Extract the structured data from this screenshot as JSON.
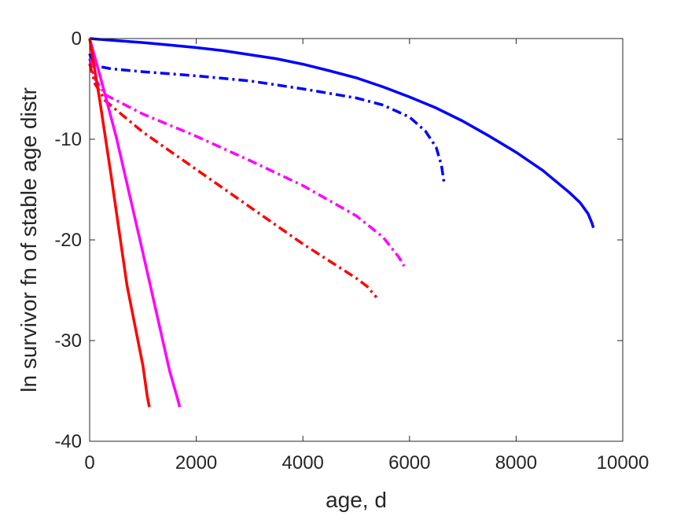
{
  "chart_data": {
    "type": "line",
    "xlabel": "age, d",
    "ylabel": "ln survivor fn of stable age distr",
    "xlim": [
      0,
      10000
    ],
    "ylim": [
      -40,
      0
    ],
    "xticks": [
      0,
      2000,
      4000,
      6000,
      8000,
      10000
    ],
    "yticks": [
      0,
      -10,
      -20,
      -30,
      -40
    ],
    "xtick_labels": [
      "0",
      "2000",
      "4000",
      "6000",
      "8000",
      "10000"
    ],
    "ytick_labels": [
      "0",
      "-10",
      "-20",
      "-30",
      "-40"
    ],
    "grid": false,
    "legend": "none",
    "series": [
      {
        "color": "#0000ff",
        "style": "solid",
        "x": [
          0,
          500,
          1000,
          1500,
          2000,
          2500,
          3000,
          3500,
          4000,
          4500,
          5000,
          5500,
          6000,
          6500,
          7000,
          7500,
          8000,
          8500,
          9000,
          9200,
          9350,
          9420,
          9450
        ],
        "y": [
          0,
          -0.2,
          -0.4,
          -0.65,
          -0.9,
          -1.2,
          -1.6,
          -2.0,
          -2.55,
          -3.2,
          -3.9,
          -4.8,
          -5.8,
          -6.9,
          -8.2,
          -9.7,
          -11.3,
          -13.1,
          -15.3,
          -16.3,
          -17.4,
          -18.3,
          -18.8
        ]
      },
      {
        "color": "#0000ff",
        "style": "dashdot",
        "x": [
          0,
          50,
          200,
          400,
          1000,
          2000,
          3000,
          4000,
          5000,
          5500,
          6000,
          6300,
          6500,
          6600,
          6650
        ],
        "y": [
          -1.5,
          -2.4,
          -2.8,
          -3.0,
          -3.3,
          -3.7,
          -4.2,
          -5.0,
          -5.9,
          -6.6,
          -7.8,
          -9.2,
          -10.8,
          -12.6,
          -14.4
        ]
      },
      {
        "color": "#ff00ff",
        "style": "dashdot",
        "x": [
          0,
          100,
          300,
          1000,
          2000,
          3000,
          4000,
          5000,
          5500,
          5800,
          5900
        ],
        "y": [
          -2.0,
          -4.0,
          -5.6,
          -7.5,
          -9.7,
          -12.1,
          -14.6,
          -17.6,
          -19.7,
          -21.7,
          -22.6
        ]
      },
      {
        "color": "#ff0000",
        "style": "dashdot",
        "x": [
          0,
          100,
          300,
          1000,
          2000,
          3000,
          4000,
          4500,
          5000,
          5200,
          5380
        ],
        "y": [
          -2.5,
          -4.5,
          -6.2,
          -9.3,
          -13.0,
          -16.7,
          -20.4,
          -22.1,
          -23.8,
          -24.6,
          -25.7
        ]
      },
      {
        "color": "#ff00ff",
        "style": "solid",
        "x": [
          0,
          200,
          500,
          1000,
          1500,
          1650,
          1690
        ],
        "y": [
          0,
          -3.8,
          -9.8,
          -21.3,
          -33.0,
          -35.8,
          -36.6
        ]
      },
      {
        "color": "#ff0000",
        "style": "solid",
        "x": [
          0,
          200,
          400,
          700,
          850,
          1000,
          1080,
          1120
        ],
        "y": [
          0,
          -6.5,
          -13.5,
          -24.5,
          -28.5,
          -32.5,
          -35.5,
          -36.6
        ]
      }
    ]
  }
}
